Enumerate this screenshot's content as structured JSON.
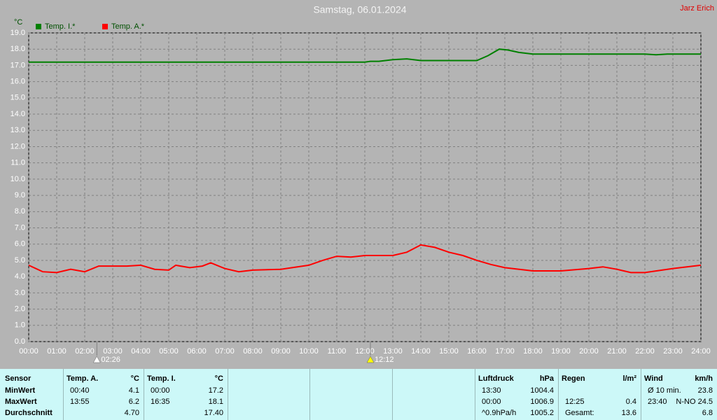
{
  "chart_data": {
    "type": "line",
    "title": "Samstag, 06.01.2024",
    "author": "Jarz Erich",
    "y_label": "°C",
    "xlim": [
      0,
      24
    ],
    "ylim": [
      0,
      19
    ],
    "grid": true,
    "xticks": [
      {
        "value": 0,
        "label": "00:00"
      },
      {
        "value": 1,
        "label": "01:00"
      },
      {
        "value": 2,
        "label": "02:00"
      },
      {
        "value": 3,
        "label": "03:00"
      },
      {
        "value": 4,
        "label": "04:00"
      },
      {
        "value": 5,
        "label": "05:00"
      },
      {
        "value": 6,
        "label": "06:00"
      },
      {
        "value": 7,
        "label": "07:00"
      },
      {
        "value": 8,
        "label": "08:00"
      },
      {
        "value": 9,
        "label": "09:00"
      },
      {
        "value": 10,
        "label": "10:00"
      },
      {
        "value": 11,
        "label": "11:00"
      },
      {
        "value": 12,
        "label": "12:00"
      },
      {
        "value": 13,
        "label": "13:00"
      },
      {
        "value": 14,
        "label": "14:00"
      },
      {
        "value": 15,
        "label": "15:00"
      },
      {
        "value": 16,
        "label": "16:00"
      },
      {
        "value": 17,
        "label": "17:00"
      },
      {
        "value": 18,
        "label": "18:00"
      },
      {
        "value": 19,
        "label": "19:00"
      },
      {
        "value": 20,
        "label": "20:00"
      },
      {
        "value": 21,
        "label": "21:00"
      },
      {
        "value": 22,
        "label": "22:00"
      },
      {
        "value": 23,
        "label": "23:00"
      },
      {
        "value": 24,
        "label": "24:00"
      }
    ],
    "yticks": [
      {
        "value": 0,
        "label": "0.0"
      },
      {
        "value": 1,
        "label": "1.0"
      },
      {
        "value": 2,
        "label": "2.0"
      },
      {
        "value": 3,
        "label": "3.0"
      },
      {
        "value": 4,
        "label": "4.0"
      },
      {
        "value": 5,
        "label": "5.0"
      },
      {
        "value": 6,
        "label": "6.0"
      },
      {
        "value": 7,
        "label": "7.0"
      },
      {
        "value": 8,
        "label": "8.0"
      },
      {
        "value": 9,
        "label": "9.0"
      },
      {
        "value": 10,
        "label": "10.0"
      },
      {
        "value": 11,
        "label": "11.0"
      },
      {
        "value": 12,
        "label": "12.0"
      },
      {
        "value": 13,
        "label": "13.0"
      },
      {
        "value": 14,
        "label": "14.0"
      },
      {
        "value": 15,
        "label": "15.0"
      },
      {
        "value": 16,
        "label": "16.0"
      },
      {
        "value": 17,
        "label": "17.0"
      },
      {
        "value": 18,
        "label": "18.0"
      },
      {
        "value": 19,
        "label": "19.0"
      }
    ],
    "annotations": [
      {
        "x": 2.4333,
        "label": "02:26"
      },
      {
        "x": 12.2,
        "label": "12:12"
      }
    ],
    "series": [
      {
        "name": "Temp. I.*",
        "color": "#008000",
        "x": [
          0,
          6,
          12,
          12.2,
          12.5,
          13,
          13.5,
          14,
          14.5,
          15,
          16,
          16.4,
          16.8,
          17.1,
          17.5,
          18,
          20,
          22,
          22.4,
          22.8,
          24
        ],
        "values": [
          17.2,
          17.2,
          17.2,
          17.25,
          17.25,
          17.35,
          17.4,
          17.3,
          17.3,
          17.3,
          17.3,
          17.6,
          18.0,
          17.95,
          17.8,
          17.7,
          17.7,
          17.7,
          17.65,
          17.7,
          17.7
        ]
      },
      {
        "name": "Temp. A.*",
        "color": "#ff0000",
        "x": [
          0,
          0.5,
          1,
          1.5,
          2,
          2.5,
          3,
          3.5,
          4,
          4.5,
          5,
          5.25,
          5.75,
          6.2,
          6.5,
          7,
          7.5,
          8,
          9,
          10,
          10.5,
          11,
          11.5,
          12,
          13,
          13.5,
          14,
          14.5,
          15,
          15.5,
          16,
          16.5,
          17,
          18,
          19,
          20,
          20.5,
          21,
          21.5,
          22,
          23,
          24
        ],
        "values": [
          4.7,
          4.3,
          4.25,
          4.45,
          4.3,
          4.65,
          4.65,
          4.65,
          4.7,
          4.45,
          4.4,
          4.7,
          4.55,
          4.65,
          4.85,
          4.5,
          4.3,
          4.4,
          4.45,
          4.7,
          5.0,
          5.25,
          5.2,
          5.3,
          5.3,
          5.5,
          5.95,
          5.8,
          5.5,
          5.3,
          5.0,
          4.75,
          4.55,
          4.35,
          4.35,
          4.5,
          4.6,
          4.45,
          4.25,
          4.25,
          4.5,
          4.7
        ]
      }
    ]
  },
  "table": {
    "row_labels": {
      "header": "Sensor",
      "rows": [
        "MinWert",
        "MaxWert",
        "Durchschnitt"
      ]
    },
    "groups": [
      {
        "header": "Temp. A.",
        "unit": "°C",
        "rows": [
          {
            "left": "00:40",
            "right": "4.1"
          },
          {
            "left": "13:55",
            "right": "6.2"
          },
          {
            "right": "4.70"
          }
        ]
      },
      {
        "header": "Temp. I.",
        "unit": "°C",
        "rows": [
          {
            "left": "00:00",
            "right": "17.2"
          },
          {
            "left": "16:35",
            "right": "18.1"
          },
          {
            "right": "17.40"
          }
        ]
      },
      {
        "header": "Luftdruck",
        "unit": "hPa",
        "rows": [
          {
            "left": "13:30",
            "right": "1004.4"
          },
          {
            "left": "00:00",
            "right": "1006.9"
          },
          {
            "left": "^0.9hPa/h",
            "right": "1005.2"
          }
        ]
      },
      {
        "header": "Regen",
        "unit": "l/m²",
        "rows": [
          {},
          {
            "left": "12:25",
            "right": "0.4"
          },
          {
            "left": "Gesamt:",
            "right": "13.6"
          }
        ]
      },
      {
        "header": "Wind",
        "unit": "km/h",
        "rows": [
          {
            "left": "Ø 10 min.",
            "right": "23.8"
          },
          {
            "left": "23:40",
            "right": "N-NO 24.5"
          },
          {
            "right": "6.8"
          }
        ]
      }
    ]
  }
}
